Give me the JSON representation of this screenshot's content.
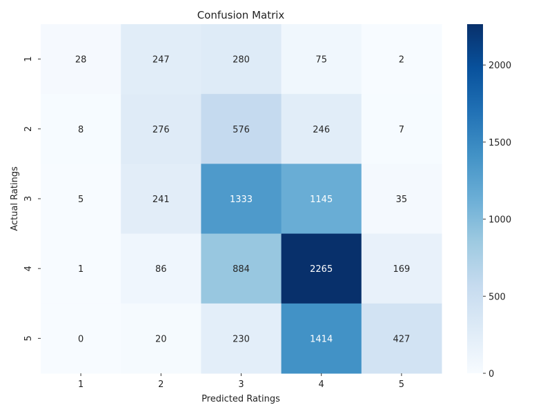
{
  "chart_data": {
    "type": "heatmap",
    "title": "Confusion Matrix",
    "xlabel": "Predicted Ratings",
    "ylabel": "Actual Ratings",
    "x_categories": [
      "1",
      "2",
      "3",
      "4",
      "5"
    ],
    "y_categories": [
      "1",
      "2",
      "3",
      "4",
      "5"
    ],
    "values": [
      [
        28,
        247,
        280,
        75,
        2
      ],
      [
        8,
        276,
        576,
        246,
        7
      ],
      [
        5,
        241,
        1333,
        1145,
        35
      ],
      [
        1,
        86,
        884,
        2265,
        169
      ],
      [
        0,
        20,
        230,
        1414,
        427
      ]
    ],
    "colorbar": {
      "min": 0,
      "max": 2265,
      "ticks": [
        0,
        500,
        1000,
        1500,
        2000
      ]
    },
    "colormap": [
      "#f7fbff",
      "#deebf7",
      "#c6dbef",
      "#9ecae1",
      "#6baed6",
      "#4292c6",
      "#2171b5",
      "#08519c",
      "#08306b"
    ]
  }
}
